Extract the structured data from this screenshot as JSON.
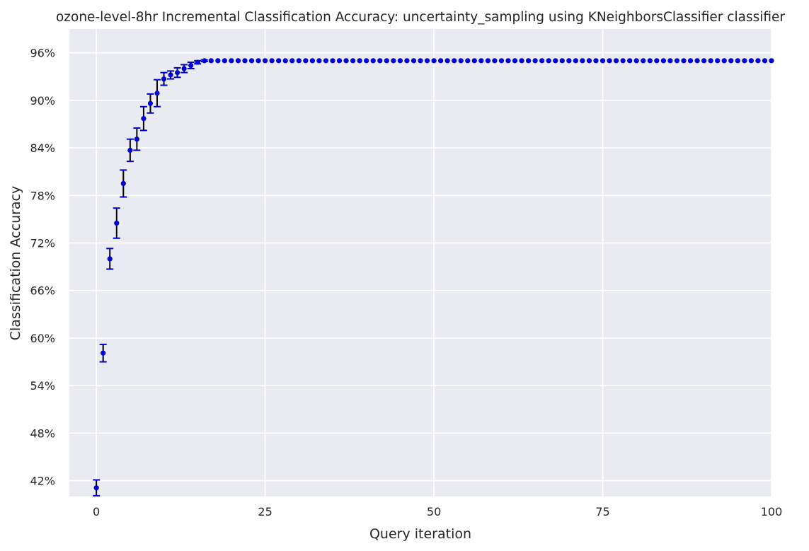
{
  "chart_data": {
    "type": "scatter",
    "title": "ozone-level-8hr Incremental Classification Accuracy: uncertainty_sampling using KNeighborsClassifier classifier",
    "xlabel": "Query iteration",
    "ylabel": "Classification Accuracy",
    "xlim": [
      -4,
      100
    ],
    "ylim": [
      0.4,
      0.99
    ],
    "xticks": [
      0,
      25,
      50,
      75,
      100
    ],
    "yticks": [
      0.42,
      0.48,
      0.54,
      0.6,
      0.66,
      0.72,
      0.78,
      0.84,
      0.9,
      0.96
    ],
    "ytick_labels": [
      "42%",
      "48%",
      "54%",
      "60%",
      "66%",
      "72%",
      "78%",
      "84%",
      "90%",
      "96%"
    ],
    "grid": true,
    "legend": "none",
    "colors": {
      "background": "#eaeaf2",
      "grid": "#ffffff",
      "marker": "#0000cc",
      "errorbar": "#000000",
      "cap": "#0000cc"
    },
    "series": [
      {
        "x": [
          0,
          1,
          2,
          3,
          4,
          5,
          6,
          7,
          8,
          9,
          10,
          11,
          12,
          13,
          14,
          15,
          16
        ],
        "values": [
          0.411,
          0.581,
          0.7,
          0.745,
          0.795,
          0.837,
          0.851,
          0.877,
          0.896,
          0.909,
          0.927,
          0.932,
          0.935,
          0.94,
          0.944,
          0.948,
          0.95
        ],
        "err": [
          0.01,
          0.011,
          0.013,
          0.019,
          0.017,
          0.014,
          0.014,
          0.015,
          0.012,
          0.017,
          0.008,
          0.005,
          0.006,
          0.005,
          0.004,
          0.002,
          0.001
        ]
      }
    ],
    "plateau": {
      "x_from": 17,
      "x_to": 100,
      "value": 0.95
    }
  }
}
